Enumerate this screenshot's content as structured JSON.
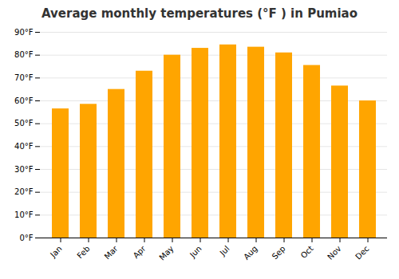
{
  "chart_data": {
    "type": "bar",
    "title": "Average monthly temperatures (°F ) in Pumiao",
    "categories": [
      "Jan",
      "Feb",
      "Mar",
      "Apr",
      "May",
      "Jun",
      "Jul",
      "Aug",
      "Sep",
      "Oct",
      "Nov",
      "Dec"
    ],
    "values": [
      56.5,
      58.5,
      65.0,
      73.0,
      80.0,
      83.0,
      84.5,
      83.5,
      81.0,
      75.5,
      66.5,
      60.0
    ],
    "color": "#FFA500",
    "ylim": [
      0,
      90
    ],
    "yticks": [
      {
        "value": 0,
        "label": "0°F"
      },
      {
        "value": 10,
        "label": "10°F"
      },
      {
        "value": 20,
        "label": "20°F"
      },
      {
        "value": 30,
        "label": "30°F"
      },
      {
        "value": 40,
        "label": "40°F"
      },
      {
        "value": 50,
        "label": "50°F"
      },
      {
        "value": 60,
        "label": "60°F"
      },
      {
        "value": 70,
        "label": "70°F"
      },
      {
        "value": 80,
        "label": "80°F"
      },
      {
        "value": 90,
        "label": "90°F"
      }
    ],
    "grid": true
  }
}
